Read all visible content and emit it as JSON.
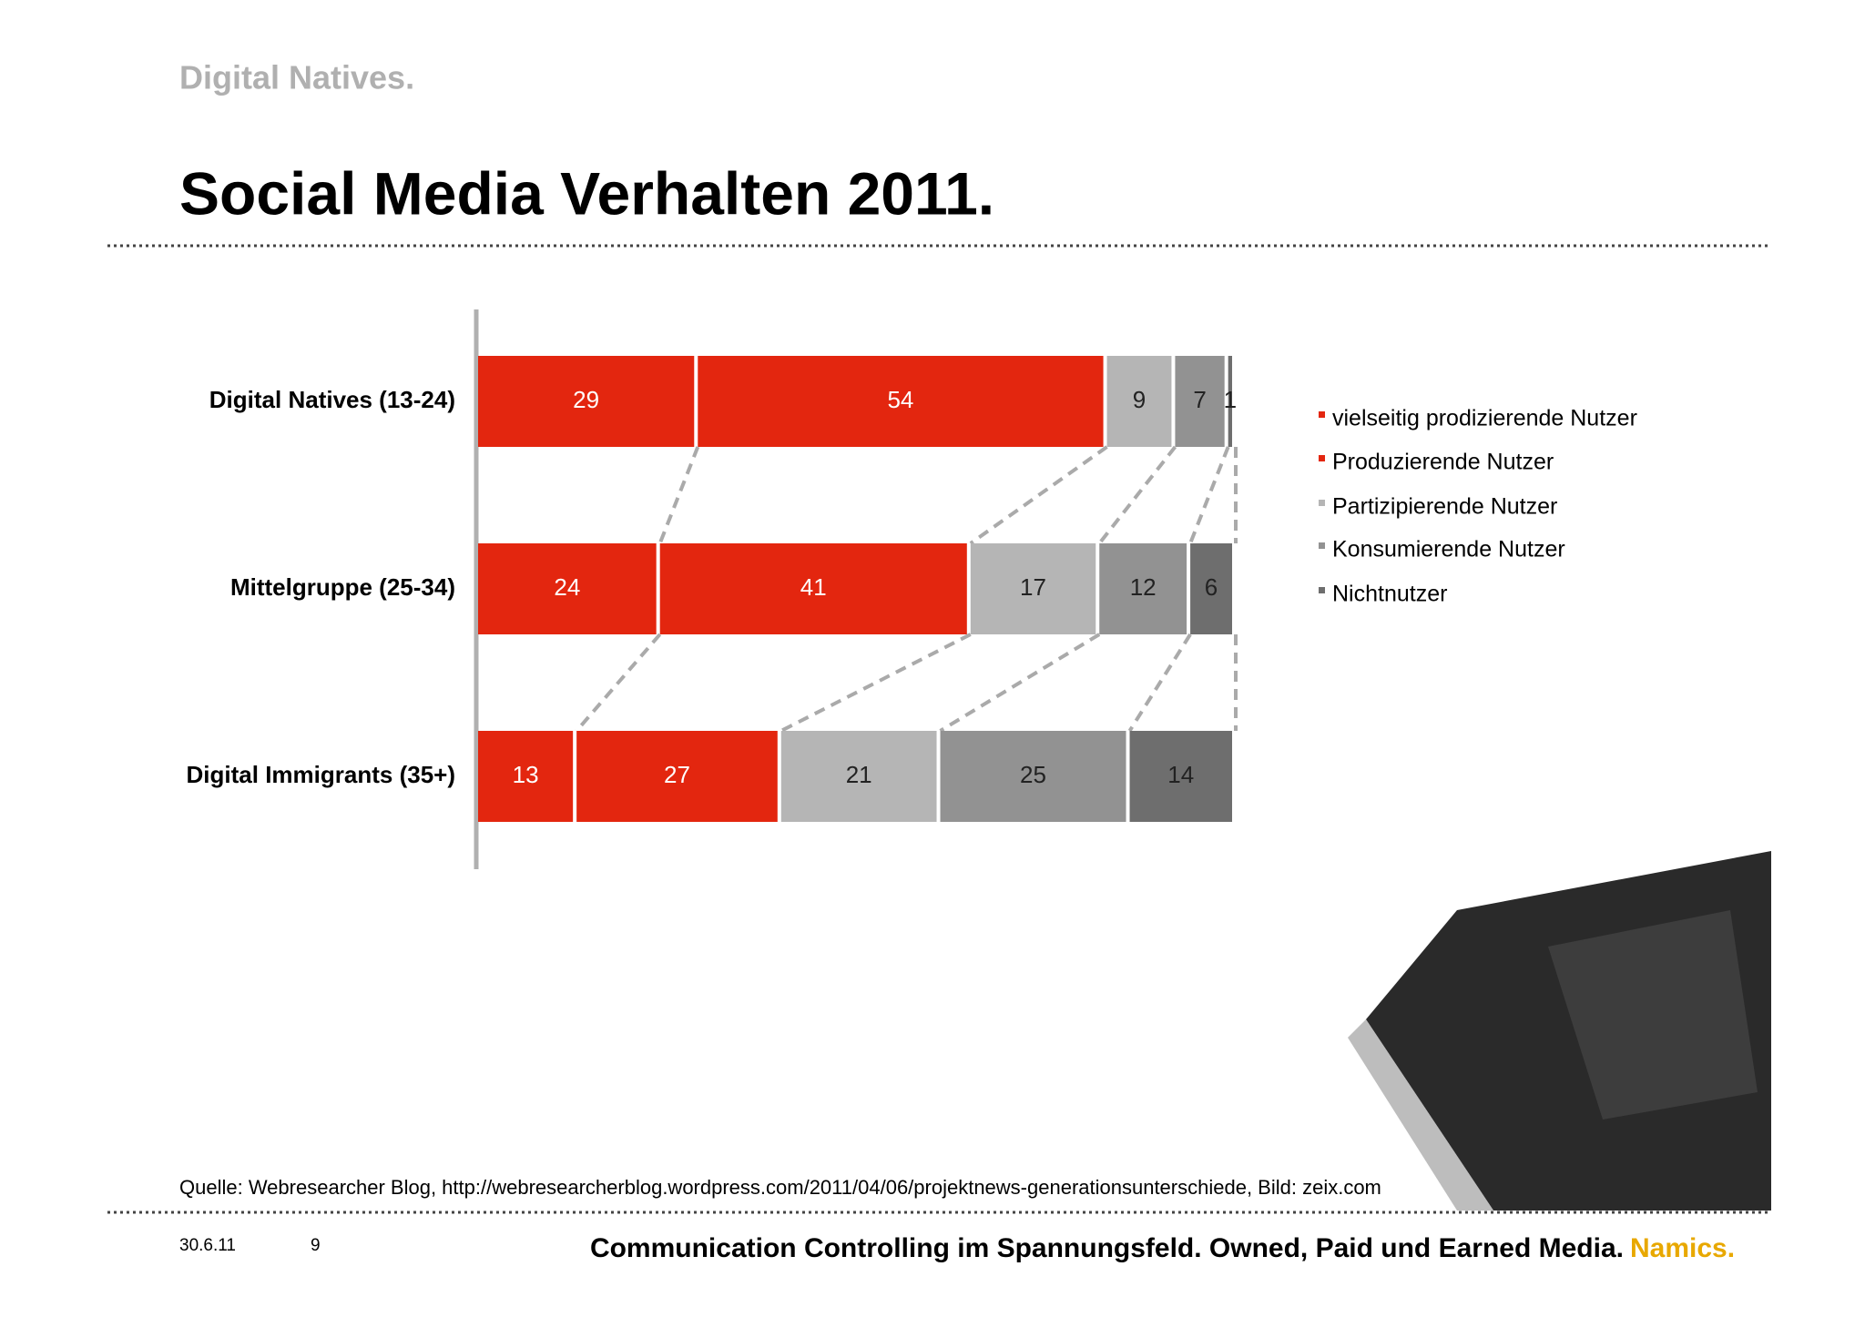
{
  "header": {
    "subtitle": "Digital Natives.",
    "title": "Social Media Verhalten 2011."
  },
  "chart_data": {
    "type": "bar",
    "orientation": "horizontal",
    "stacked": true,
    "categories": [
      "Digital Natives (13-24)",
      "Mittelgruppe (25-34)",
      "Digital Immigrants (35+)"
    ],
    "xlim": [
      0,
      100
    ],
    "series": [
      {
        "name": "vielseitig prodizierende Nutzer",
        "color": "#e3260f",
        "label_color": "#ffffff",
        "values": [
          29,
          24,
          13
        ]
      },
      {
        "name": "Produzierende Nutzer",
        "color": "#e3260f",
        "label_color": "#ffffff",
        "values": [
          54,
          41,
          27
        ]
      },
      {
        "name": "Partizipierende Nutzer",
        "color": "#b5b5b5",
        "label_color": "#222222",
        "values": [
          9,
          17,
          21
        ]
      },
      {
        "name": "Konsumierende Nutzer",
        "color": "#929292",
        "label_color": "#222222",
        "values": [
          7,
          12,
          25
        ]
      },
      {
        "name": "Nichtnutzer",
        "color": "#6e6e6e",
        "label_color": "#222222",
        "values": [
          1,
          6,
          14
        ]
      }
    ]
  },
  "source": "Quelle: Webresearcher Blog, http://webresearcherblog.wordpress.com/2011/04/06/projektnews-generationsunterschiede, Bild: zeix.com",
  "footer": {
    "date": "30.6.11",
    "page": "9",
    "text": "Communication Controlling im Spannungsfeld. Owned, Paid und Earned Media.",
    "brand": "Namics."
  }
}
